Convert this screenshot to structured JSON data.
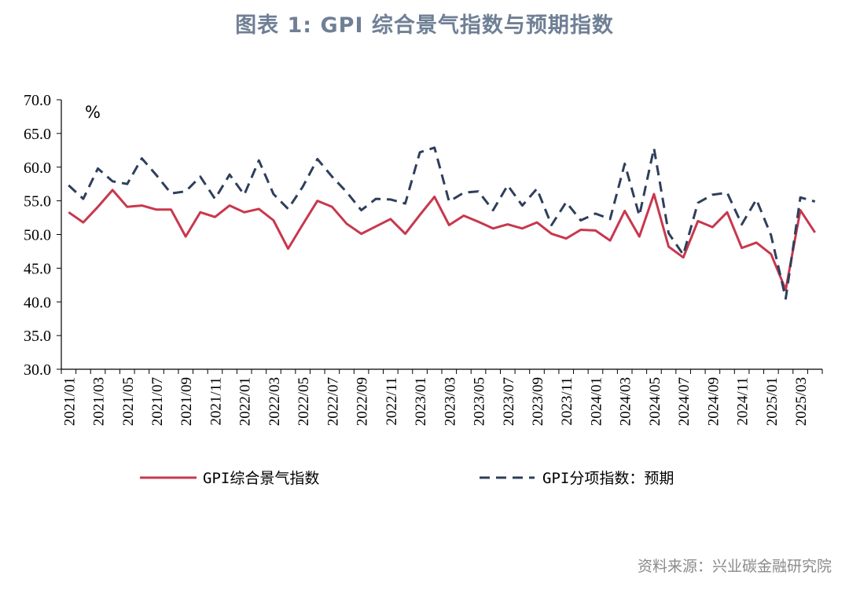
{
  "title": "图表 1:   GPI 综合景气指数与预期指数",
  "source": "资料来源：兴业碳金融研究院",
  "colors": {
    "series1": "#c8384d",
    "series2": "#2e3f5c",
    "title": "#6f7f95"
  },
  "chart_data": {
    "type": "line",
    "unit_label": "%",
    "ylim": [
      30,
      70
    ],
    "yticks": [
      "70.0",
      "65.0",
      "60.0",
      "55.0",
      "50.0",
      "45.0",
      "40.0",
      "35.0",
      "30.0"
    ],
    "ytick_values": [
      70,
      65,
      60,
      55,
      50,
      45,
      40,
      35,
      30
    ],
    "x": [
      "2021/01",
      "2021/02",
      "2021/03",
      "2021/04",
      "2021/05",
      "2021/06",
      "2021/07",
      "2021/08",
      "2021/09",
      "2021/10",
      "2021/11",
      "2021/12",
      "2022/01",
      "2022/02",
      "2022/03",
      "2022/04",
      "2022/05",
      "2022/06",
      "2022/07",
      "2022/08",
      "2022/09",
      "2022/10",
      "2022/11",
      "2022/12",
      "2023/01",
      "2023/02",
      "2023/03",
      "2023/04",
      "2023/05",
      "2023/06",
      "2023/07",
      "2023/08",
      "2023/09",
      "2023/10",
      "2023/11",
      "2023/12",
      "2024/01",
      "2024/02",
      "2024/03",
      "2024/04",
      "2024/05",
      "2024/06",
      "2024/07",
      "2024/08",
      "2024/09",
      "2024/10",
      "2024/11",
      "2024/12",
      "2025/01",
      "2025/02",
      "2025/03",
      "2025/04"
    ],
    "xtick_labels": [
      "2021/01",
      "2021/03",
      "2021/05",
      "2021/07",
      "2021/09",
      "2021/11",
      "2022/01",
      "2022/03",
      "2022/05",
      "2022/07",
      "2022/09",
      "2022/11",
      "2023/01",
      "2023/03",
      "2023/05",
      "2023/07",
      "2023/09",
      "2023/11",
      "2024/01",
      "2024/03",
      "2024/05",
      "2024/07",
      "2024/09",
      "2024/11",
      "2025/01",
      "2025/03"
    ],
    "grid": false,
    "legend_position": "bottom",
    "series": [
      {
        "name": "GPI综合景气指数",
        "style": "solid",
        "values": [
          53.3,
          51.8,
          54.1,
          56.6,
          54.1,
          54.3,
          53.7,
          53.7,
          49.7,
          53.3,
          52.6,
          54.3,
          53.3,
          53.8,
          52.1,
          47.9,
          51.5,
          55.0,
          54.1,
          51.6,
          50.1,
          51.2,
          52.3,
          50.1,
          52.9,
          55.6,
          51.4,
          52.8,
          51.9,
          50.9,
          51.5,
          50.9,
          51.8,
          50.1,
          49.4,
          50.7,
          50.6,
          49.1,
          53.5,
          49.7,
          56.0,
          48.2,
          46.6,
          52.0,
          51.1,
          53.3,
          48.0,
          48.8,
          47.1,
          41.8,
          53.6,
          50.3
        ]
      },
      {
        "name": "GPI分项指数：预期",
        "style": "dashed",
        "values": [
          57.3,
          55.3,
          59.8,
          57.9,
          57.5,
          61.3,
          58.8,
          56.1,
          56.4,
          58.6,
          55.3,
          58.9,
          55.9,
          61.0,
          56.0,
          53.8,
          57.1,
          61.2,
          58.6,
          56.3,
          53.6,
          55.3,
          55.2,
          54.6,
          62.2,
          62.9,
          54.9,
          56.2,
          56.4,
          53.6,
          57.3,
          54.3,
          56.8,
          51.4,
          54.8,
          52.1,
          53.1,
          52.3,
          60.5,
          52.8,
          62.8,
          50.2,
          47.0,
          54.7,
          55.9,
          56.2,
          51.5,
          55.2,
          49.9,
          40.5,
          55.5,
          54.9
        ]
      }
    ]
  }
}
